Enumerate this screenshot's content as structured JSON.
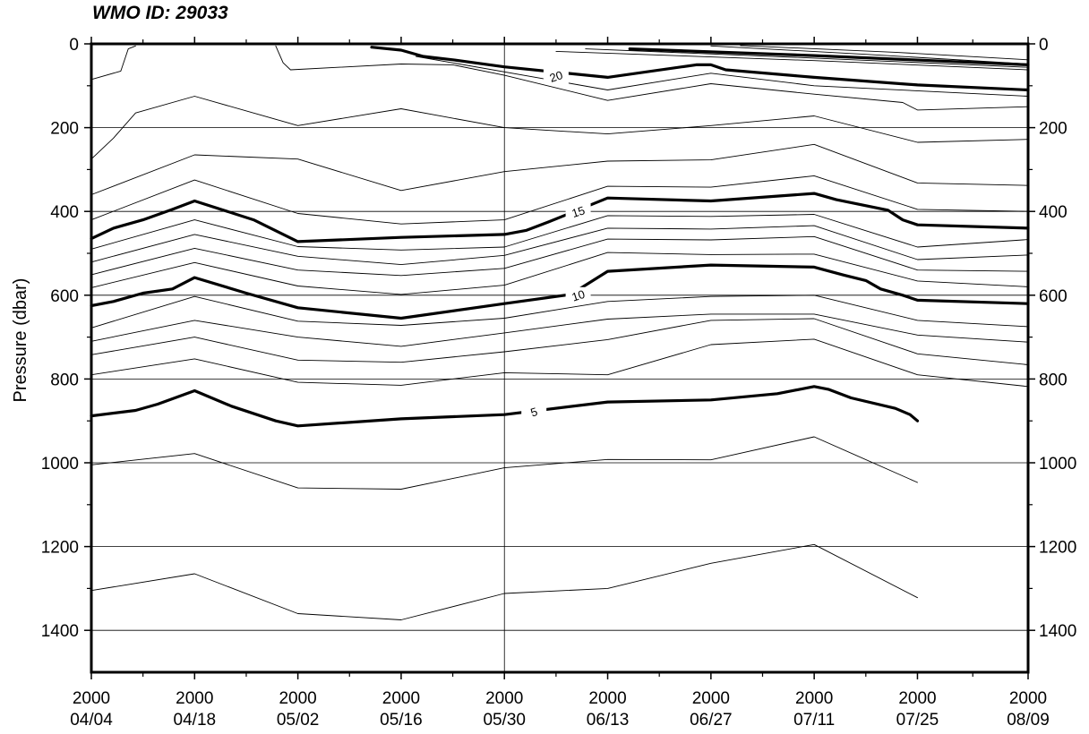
{
  "chart_data": {
    "type": "contour",
    "title": "WMO ID: 29033",
    "xlabel": "",
    "ylabel": "Pressure (dbar)",
    "x_ticks": [
      {
        "date": "2000-04-04",
        "year": "2000",
        "md": "04/04"
      },
      {
        "date": "2000-04-18",
        "year": "2000",
        "md": "04/18"
      },
      {
        "date": "2000-05-02",
        "year": "2000",
        "md": "05/02"
      },
      {
        "date": "2000-05-16",
        "year": "2000",
        "md": "05/16"
      },
      {
        "date": "2000-05-30",
        "year": "2000",
        "md": "05/30"
      },
      {
        "date": "2000-06-13",
        "year": "2000",
        "md": "06/13"
      },
      {
        "date": "2000-06-27",
        "year": "2000",
        "md": "06/27"
      },
      {
        "date": "2000-07-11",
        "year": "2000",
        "md": "07/11"
      },
      {
        "date": "2000-07-25",
        "year": "2000",
        "md": "07/25"
      },
      {
        "date": "2000-08-09",
        "year": "2000",
        "md": "08/09"
      }
    ],
    "xlim": [
      "2000-04-04",
      "2000-08-09"
    ],
    "ylim": [
      0,
      1500
    ],
    "y_inverted": true,
    "y_ticks": [
      0,
      200,
      400,
      600,
      800,
      1000,
      1200,
      1400
    ],
    "y_tick_labels": [
      "0",
      "200",
      "400",
      "600",
      "800",
      "1000",
      "1200",
      "1400"
    ],
    "y_minor_step": 100,
    "grid": true,
    "profile_marker_date": "2000-05-30",
    "contour_interval": 1,
    "labeled_levels": [
      "20",
      "15",
      "10",
      "5"
    ],
    "contours": [
      {
        "level": 5,
        "bold": true,
        "label": "5",
        "label_at": [
          "2000-06-03",
          878
        ],
        "points": [
          [
            "2000-04-04",
            888
          ],
          [
            "2000-04-10",
            875
          ],
          [
            "2000-04-13",
            860
          ],
          [
            "2000-04-18",
            828
          ],
          [
            "2000-04-23",
            865
          ],
          [
            "2000-04-29",
            900
          ],
          [
            "2000-05-02",
            912
          ],
          [
            "2000-05-16",
            895
          ],
          [
            "2000-05-30",
            885
          ],
          [
            "2000-06-13",
            855
          ],
          [
            "2000-06-27",
            850
          ],
          [
            "2000-07-06",
            835
          ],
          [
            "2000-07-11",
            818
          ],
          [
            "2000-07-13",
            825
          ],
          [
            "2000-07-16",
            845
          ],
          [
            "2000-07-22",
            870
          ],
          [
            "2000-07-24",
            885
          ],
          [
            "2000-07-25",
            900
          ]
        ]
      },
      {
        "level": 10,
        "bold": true,
        "label": "10",
        "label_at": [
          "2000-06-09",
          600
        ],
        "points": [
          [
            "2000-04-04",
            625
          ],
          [
            "2000-04-07",
            615
          ],
          [
            "2000-04-11",
            595
          ],
          [
            "2000-04-15",
            585
          ],
          [
            "2000-04-18",
            558
          ],
          [
            "2000-04-25",
            595
          ],
          [
            "2000-05-02",
            630
          ],
          [
            "2000-05-16",
            655
          ],
          [
            "2000-05-30",
            620
          ],
          [
            "2000-06-08",
            598
          ],
          [
            "2000-06-13",
            543
          ],
          [
            "2000-06-27",
            528
          ],
          [
            "2000-07-11",
            533
          ],
          [
            "2000-07-15",
            552
          ],
          [
            "2000-07-18",
            565
          ],
          [
            "2000-07-20",
            585
          ],
          [
            "2000-07-23",
            600
          ],
          [
            "2000-07-25",
            612
          ],
          [
            "2000-08-09",
            620
          ]
        ]
      },
      {
        "level": 15,
        "bold": true,
        "label": "15",
        "label_at": [
          "2000-06-09",
          400
        ],
        "points": [
          [
            "2000-04-04",
            465
          ],
          [
            "2000-04-07",
            440
          ],
          [
            "2000-04-11",
            420
          ],
          [
            "2000-04-15",
            395
          ],
          [
            "2000-04-18",
            375
          ],
          [
            "2000-04-26",
            420
          ],
          [
            "2000-05-02",
            472
          ],
          [
            "2000-05-16",
            462
          ],
          [
            "2000-05-30",
            455
          ],
          [
            "2000-06-02",
            445
          ],
          [
            "2000-06-05",
            425
          ],
          [
            "2000-06-13",
            368
          ],
          [
            "2000-06-27",
            375
          ],
          [
            "2000-07-11",
            357
          ],
          [
            "2000-07-14",
            372
          ],
          [
            "2000-07-21",
            397
          ],
          [
            "2000-07-23",
            420
          ],
          [
            "2000-07-25",
            432
          ],
          [
            "2000-08-09",
            440
          ]
        ]
      },
      {
        "level": 20,
        "bold": true,
        "label": "20",
        "label_at": [
          "2000-06-06",
          77
        ],
        "points": [
          [
            "2000-05-12",
            8
          ],
          [
            "2000-05-16",
            15
          ],
          [
            "2000-05-19",
            30
          ],
          [
            "2000-05-23",
            38
          ],
          [
            "2000-05-30",
            55
          ],
          [
            "2000-06-13",
            80
          ],
          [
            "2000-06-25",
            50
          ],
          [
            "2000-06-27",
            50
          ],
          [
            "2000-06-29",
            62
          ],
          [
            "2000-07-11",
            80
          ],
          [
            "2000-07-25",
            98
          ],
          [
            "2000-08-09",
            110
          ]
        ]
      },
      {
        "level": 21,
        "bold": true,
        "points": [
          [
            "2000-06-16",
            12
          ],
          [
            "2000-07-11",
            28
          ],
          [
            "2000-08-09",
            50
          ]
        ]
      },
      {
        "level": 4,
        "points": [
          [
            "2000-04-04",
            1005
          ],
          [
            "2000-04-18",
            978
          ],
          [
            "2000-05-02",
            1060
          ],
          [
            "2000-05-16",
            1063
          ],
          [
            "2000-05-30",
            1012
          ],
          [
            "2000-06-13",
            992
          ],
          [
            "2000-06-27",
            993
          ],
          [
            "2000-07-11",
            938
          ],
          [
            "2000-07-25",
            1047
          ]
        ]
      },
      {
        "level": 3,
        "points": [
          [
            "2000-04-04",
            1305
          ],
          [
            "2000-04-18",
            1265
          ],
          [
            "2000-05-02",
            1360
          ],
          [
            "2000-05-16",
            1375
          ],
          [
            "2000-05-30",
            1312
          ],
          [
            "2000-06-13",
            1300
          ],
          [
            "2000-06-27",
            1240
          ],
          [
            "2000-07-11",
            1195
          ],
          [
            "2000-07-25",
            1322
          ]
        ]
      },
      {
        "level": 6,
        "points": [
          [
            "2000-04-04",
            790
          ],
          [
            "2000-04-18",
            752
          ],
          [
            "2000-05-02",
            808
          ],
          [
            "2000-05-16",
            815
          ],
          [
            "2000-05-30",
            785
          ],
          [
            "2000-06-13",
            790
          ],
          [
            "2000-06-27",
            718
          ],
          [
            "2000-07-11",
            705
          ],
          [
            "2000-07-25",
            790
          ],
          [
            "2000-08-09",
            818
          ]
        ]
      },
      {
        "level": 7,
        "points": [
          [
            "2000-04-04",
            742
          ],
          [
            "2000-04-18",
            700
          ],
          [
            "2000-05-02",
            755
          ],
          [
            "2000-05-16",
            760
          ],
          [
            "2000-05-30",
            735
          ],
          [
            "2000-06-13",
            706
          ],
          [
            "2000-06-27",
            660
          ],
          [
            "2000-07-11",
            656
          ],
          [
            "2000-07-25",
            740
          ],
          [
            "2000-08-09",
            766
          ]
        ]
      },
      {
        "level": 8,
        "points": [
          [
            "2000-04-04",
            710
          ],
          [
            "2000-04-18",
            660
          ],
          [
            "2000-05-02",
            700
          ],
          [
            "2000-05-16",
            722
          ],
          [
            "2000-05-30",
            690
          ],
          [
            "2000-06-13",
            657
          ],
          [
            "2000-06-27",
            645
          ],
          [
            "2000-07-11",
            645
          ],
          [
            "2000-07-25",
            695
          ],
          [
            "2000-08-09",
            712
          ]
        ]
      },
      {
        "level": 9,
        "points": [
          [
            "2000-04-04",
            678
          ],
          [
            "2000-04-18",
            603
          ],
          [
            "2000-05-02",
            662
          ],
          [
            "2000-05-16",
            672
          ],
          [
            "2000-05-30",
            655
          ],
          [
            "2000-06-13",
            615
          ],
          [
            "2000-06-27",
            603
          ],
          [
            "2000-07-11",
            600
          ],
          [
            "2000-07-25",
            660
          ],
          [
            "2000-08-09",
            675
          ]
        ]
      },
      {
        "level": 11,
        "points": [
          [
            "2000-04-04",
            582
          ],
          [
            "2000-04-18",
            522
          ],
          [
            "2000-05-02",
            578
          ],
          [
            "2000-05-16",
            598
          ],
          [
            "2000-05-30",
            576
          ],
          [
            "2000-06-13",
            498
          ],
          [
            "2000-06-27",
            503
          ],
          [
            "2000-07-11",
            502
          ],
          [
            "2000-07-25",
            566
          ],
          [
            "2000-08-09",
            580
          ]
        ]
      },
      {
        "level": 12,
        "points": [
          [
            "2000-04-04",
            551
          ],
          [
            "2000-04-18",
            488
          ],
          [
            "2000-05-02",
            540
          ],
          [
            "2000-05-16",
            553
          ],
          [
            "2000-05-30",
            536
          ],
          [
            "2000-06-13",
            466
          ],
          [
            "2000-06-27",
            468
          ],
          [
            "2000-07-11",
            460
          ],
          [
            "2000-07-25",
            540
          ],
          [
            "2000-08-09",
            543
          ]
        ]
      },
      {
        "level": 13,
        "points": [
          [
            "2000-04-04",
            521
          ],
          [
            "2000-04-18",
            455
          ],
          [
            "2000-05-02",
            507
          ],
          [
            "2000-05-16",
            527
          ],
          [
            "2000-05-30",
            505
          ],
          [
            "2000-06-13",
            440
          ],
          [
            "2000-06-27",
            442
          ],
          [
            "2000-07-11",
            434
          ],
          [
            "2000-07-25",
            515
          ],
          [
            "2000-08-09",
            504
          ]
        ]
      },
      {
        "level": 14,
        "points": [
          [
            "2000-04-04",
            490
          ],
          [
            "2000-04-18",
            420
          ],
          [
            "2000-05-02",
            484
          ],
          [
            "2000-05-16",
            492
          ],
          [
            "2000-05-30",
            485
          ],
          [
            "2000-06-13",
            410
          ],
          [
            "2000-06-27",
            412
          ],
          [
            "2000-07-11",
            407
          ],
          [
            "2000-07-25",
            485
          ],
          [
            "2000-08-09",
            467
          ]
        ]
      },
      {
        "level": 16,
        "points": [
          [
            "2000-04-04",
            420
          ],
          [
            "2000-04-18",
            325
          ],
          [
            "2000-05-02",
            405
          ],
          [
            "2000-05-16",
            430
          ],
          [
            "2000-05-30",
            420
          ],
          [
            "2000-06-13",
            340
          ],
          [
            "2000-06-27",
            342
          ],
          [
            "2000-07-11",
            315
          ],
          [
            "2000-07-25",
            395
          ],
          [
            "2000-08-09",
            400
          ]
        ]
      },
      {
        "level": 17,
        "points": [
          [
            "2000-04-04",
            360
          ],
          [
            "2000-04-18",
            265
          ],
          [
            "2000-05-02",
            275
          ],
          [
            "2000-05-16",
            350
          ],
          [
            "2000-05-30",
            305
          ],
          [
            "2000-06-13",
            280
          ],
          [
            "2000-06-27",
            277
          ],
          [
            "2000-07-11",
            240
          ],
          [
            "2000-07-25",
            332
          ],
          [
            "2000-08-09",
            338
          ]
        ]
      },
      {
        "level": 18,
        "points": [
          [
            "2000-04-04",
            275
          ],
          [
            "2000-04-07",
            225
          ],
          [
            "2000-04-10",
            165
          ],
          [
            "2000-04-18",
            125
          ],
          [
            "2000-05-02",
            195
          ],
          [
            "2000-05-16",
            155
          ],
          [
            "2000-05-30",
            200
          ],
          [
            "2000-06-13",
            215
          ],
          [
            "2000-06-27",
            195
          ],
          [
            "2000-07-11",
            172
          ],
          [
            "2000-07-25",
            235
          ],
          [
            "2000-08-09",
            228
          ]
        ]
      },
      {
        "level": 19,
        "points": [
          [
            "2000-04-04",
            85
          ],
          [
            "2000-04-08",
            65
          ],
          [
            "2000-04-09",
            12
          ],
          [
            "2000-04-10",
            5
          ]
        ]
      },
      {
        "level": 19,
        "points": [
          [
            "2000-04-29",
            5
          ],
          [
            "2000-04-30",
            45
          ],
          [
            "2000-05-01",
            62
          ],
          [
            "2000-05-16",
            48
          ],
          [
            "2000-05-23",
            50
          ],
          [
            "2000-05-30",
            75
          ],
          [
            "2000-06-13",
            135
          ],
          [
            "2000-06-27",
            95
          ],
          [
            "2000-07-11",
            120
          ],
          [
            "2000-07-23",
            140
          ],
          [
            "2000-07-25",
            158
          ],
          [
            "2000-08-09",
            150
          ]
        ]
      },
      {
        "level": 19.5,
        "points": [
          [
            "2000-05-18",
            30
          ],
          [
            "2000-06-13",
            110
          ],
          [
            "2000-06-27",
            70
          ],
          [
            "2000-07-11",
            100
          ],
          [
            "2000-08-09",
            125
          ]
        ]
      },
      {
        "level": 21.5,
        "points": [
          [
            "2000-06-06",
            18
          ],
          [
            "2000-07-11",
            40
          ],
          [
            "2000-08-09",
            62
          ]
        ]
      },
      {
        "level": 22,
        "points": [
          [
            "2000-06-10",
            12
          ],
          [
            "2000-07-11",
            34
          ],
          [
            "2000-08-09",
            56
          ]
        ]
      },
      {
        "level": 22.5,
        "points": [
          [
            "2000-06-27",
            5
          ],
          [
            "2000-07-18",
            25
          ],
          [
            "2000-08-09",
            48
          ]
        ]
      },
      {
        "level": 23,
        "points": [
          [
            "2000-07-01",
            4
          ],
          [
            "2000-07-22",
            20
          ],
          [
            "2000-08-09",
            38
          ]
        ]
      }
    ]
  }
}
